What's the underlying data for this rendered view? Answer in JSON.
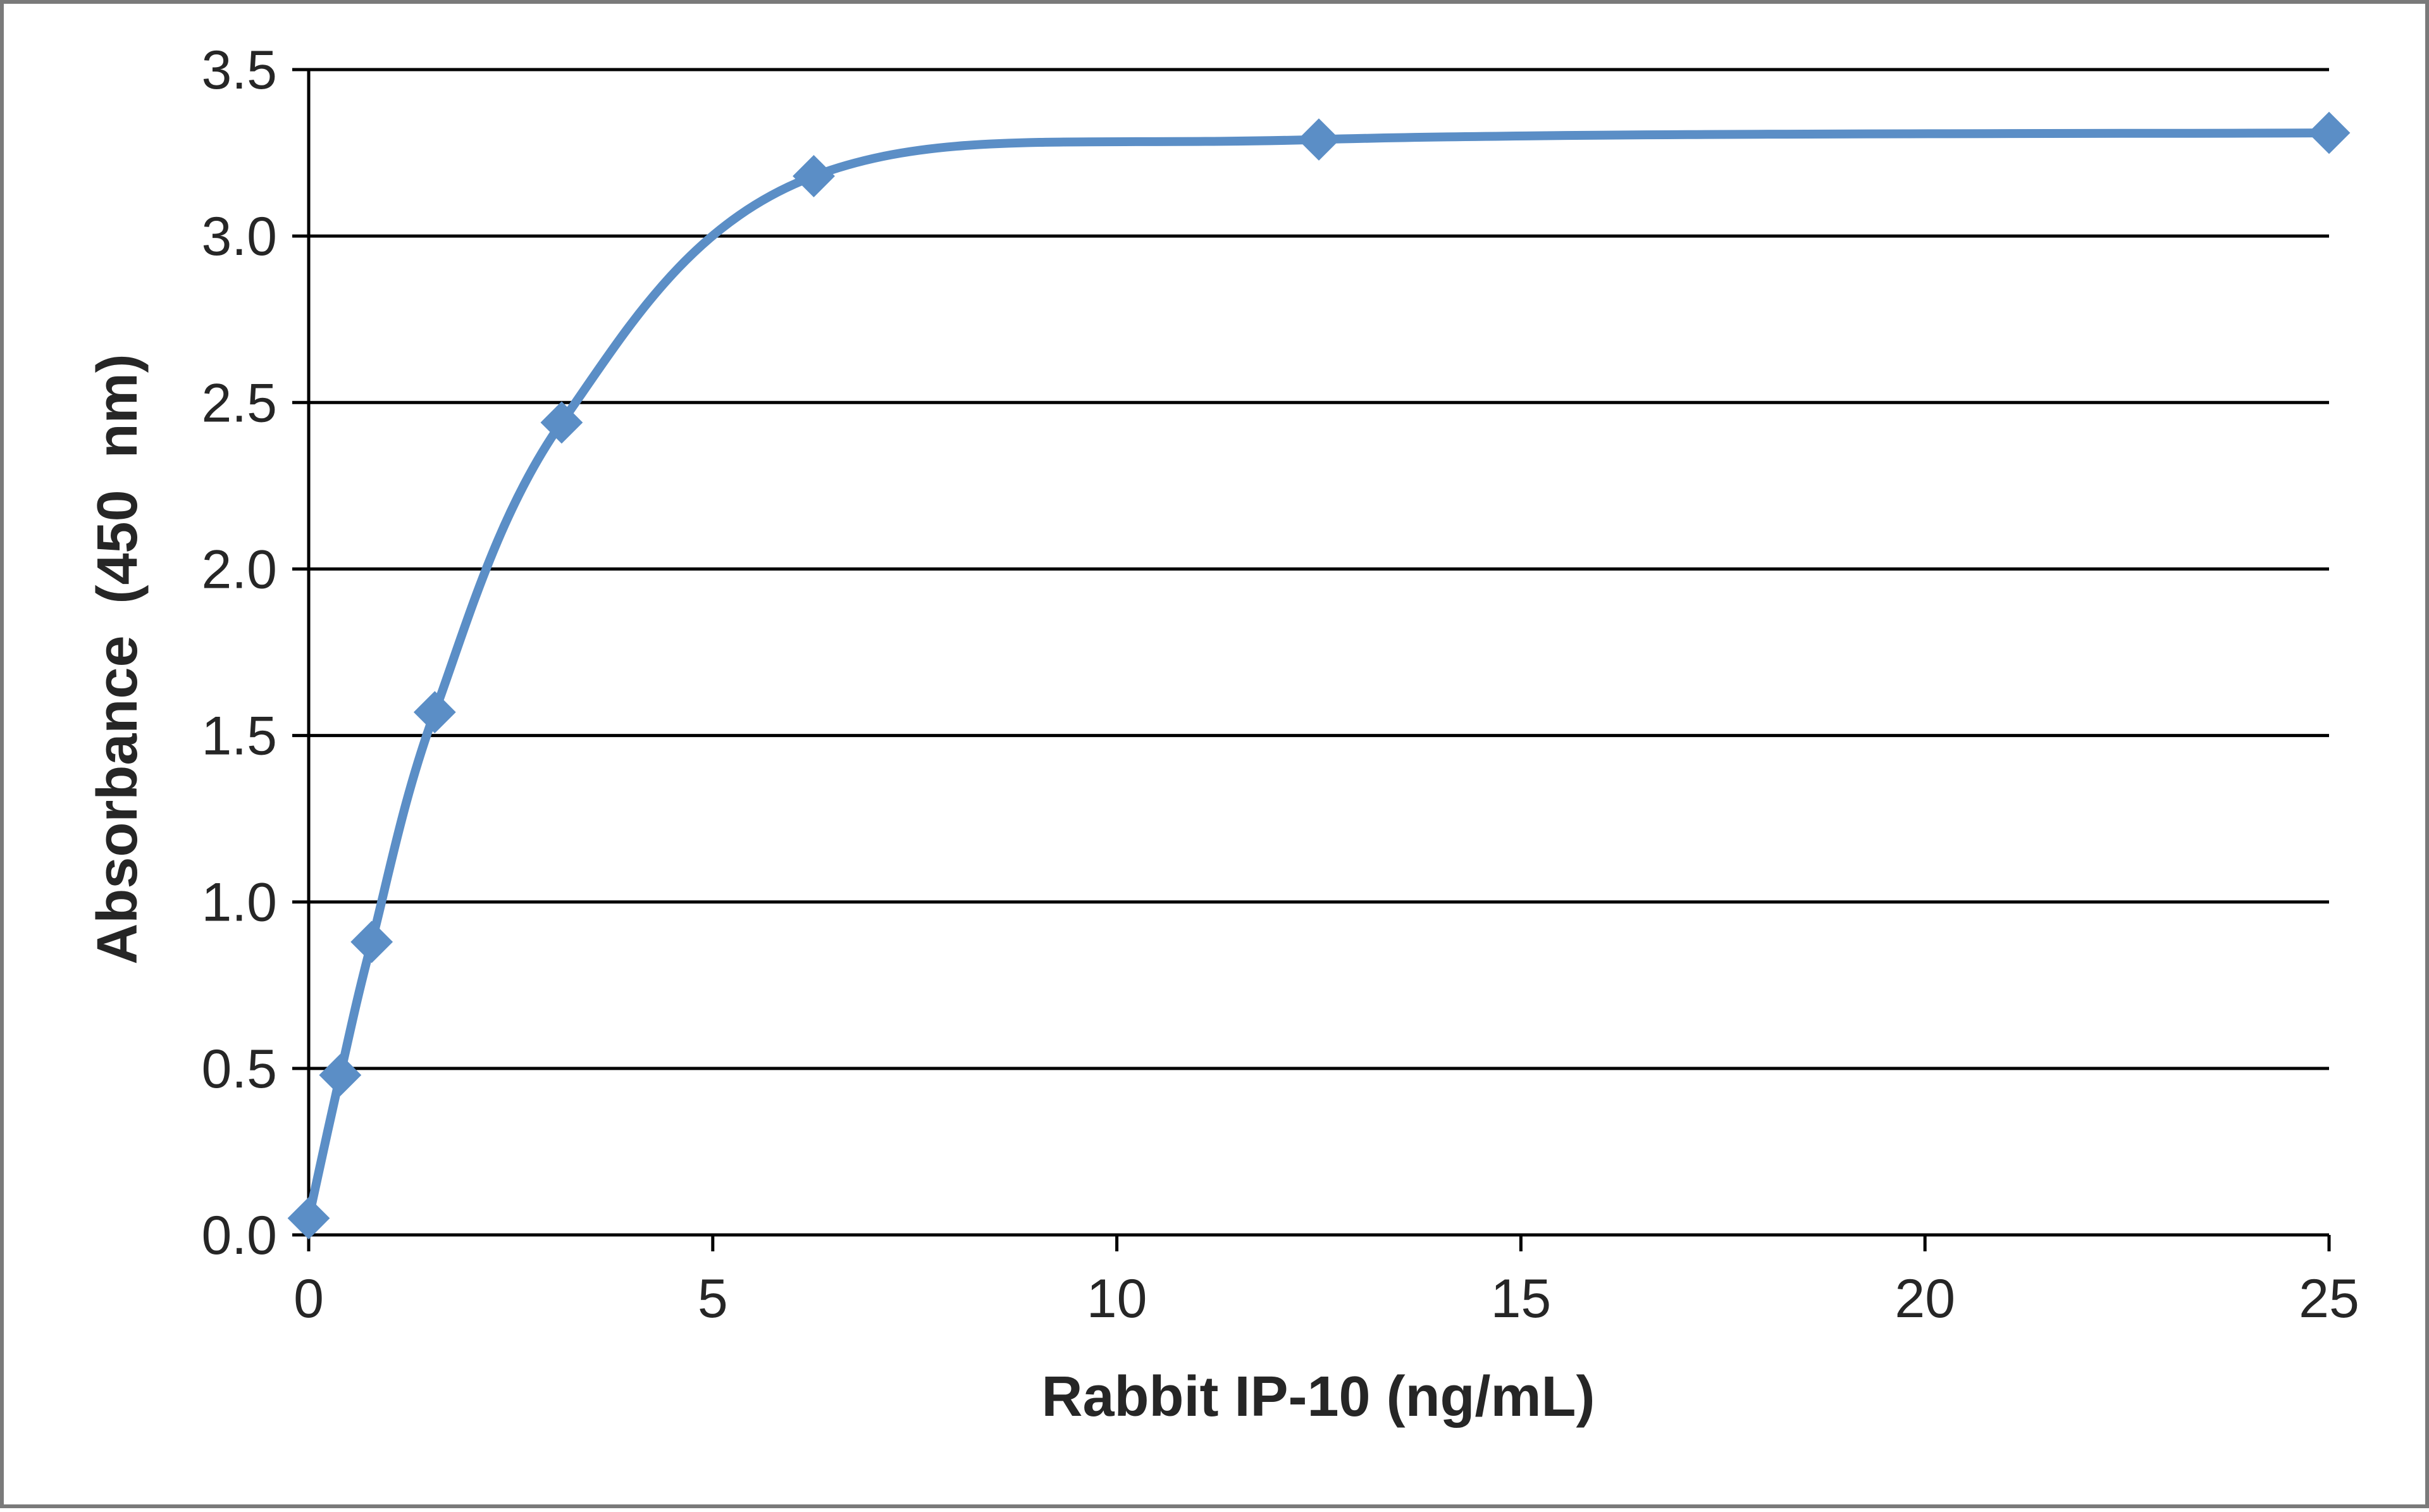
{
  "chart_data": {
    "type": "scatter",
    "title": "",
    "xlabel": "Rabbit IP-10 (ng/mL)",
    "ylabel": "Absorbance  (450  nm)",
    "xlim": [
      0,
      25
    ],
    "ylim": [
      0,
      3.5
    ],
    "x_ticks": [
      "0",
      "5",
      "10",
      "15",
      "20",
      "25"
    ],
    "x_tick_values": [
      0,
      5,
      10,
      15,
      20,
      25
    ],
    "y_ticks": [
      "0.0",
      "0.5",
      "1.0",
      "1.5",
      "2.0",
      "2.5",
      "3.0",
      "3.5"
    ],
    "y_tick_values": [
      0,
      0.5,
      1.0,
      1.5,
      2.0,
      2.5,
      3.0,
      3.5
    ],
    "grid": "horizontal",
    "legend": "none",
    "marker": "diamond",
    "line": "smoothed",
    "series": [
      {
        "color": "#5b8ec6",
        "x": [
          0,
          0.39,
          0.78,
          1.56,
          3.13,
          6.25,
          12.5,
          25
        ],
        "y": [
          0.05,
          0.48,
          0.88,
          1.57,
          2.44,
          3.18,
          3.29,
          3.31
        ]
      }
    ]
  }
}
